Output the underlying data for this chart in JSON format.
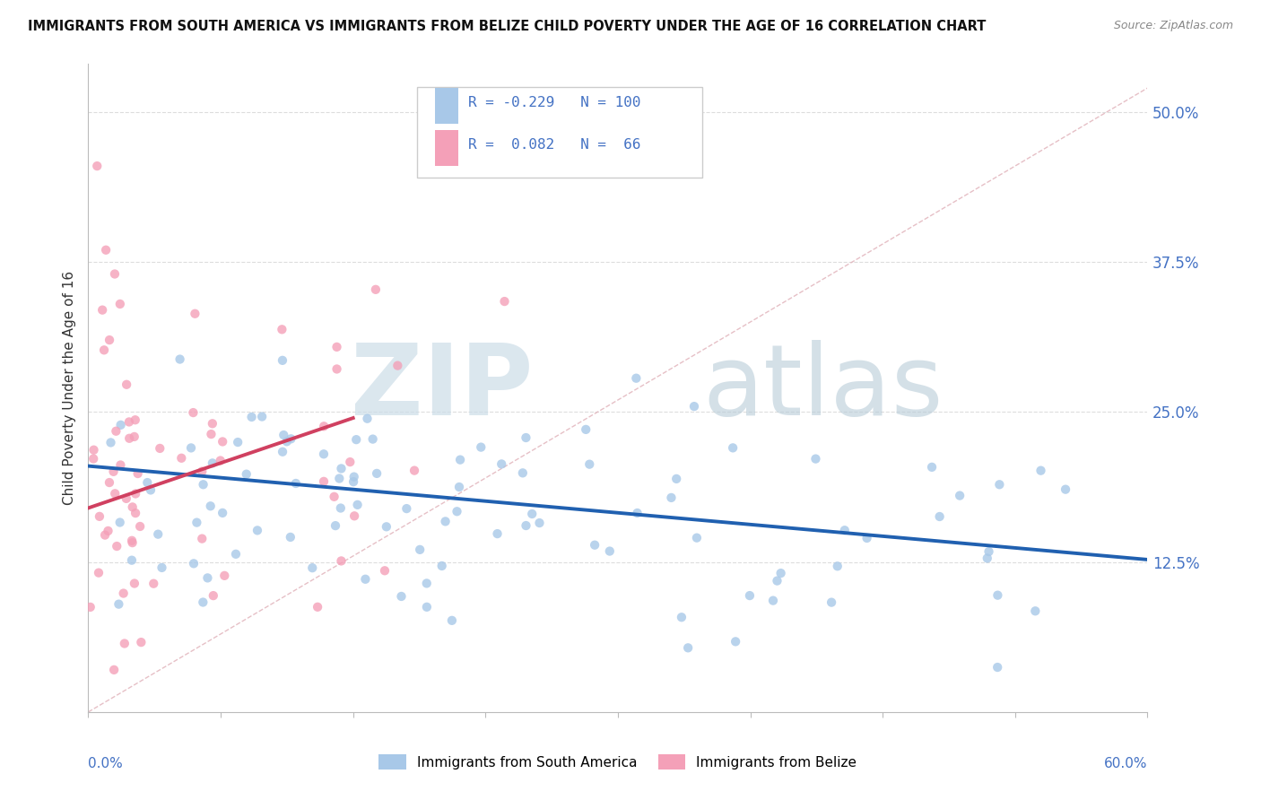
{
  "title": "IMMIGRANTS FROM SOUTH AMERICA VS IMMIGRANTS FROM BELIZE CHILD POVERTY UNDER THE AGE OF 16 CORRELATION CHART",
  "source": "Source: ZipAtlas.com",
  "ylabel": "Child Poverty Under the Age of 16",
  "ytick_labels": [
    "",
    "12.5%",
    "25.0%",
    "37.5%",
    "50.0%"
  ],
  "ytick_vals": [
    0.0,
    0.125,
    0.25,
    0.375,
    0.5
  ],
  "xlim": [
    0.0,
    0.6
  ],
  "ylim": [
    0.0,
    0.54
  ],
  "color_south_america": "#a8c8e8",
  "color_belize": "#f4a0b8",
  "color_trend_sa": "#2060b0",
  "color_trend_belize": "#d04060",
  "color_diag": "#e0a0b0",
  "watermark_zip": "ZIP",
  "watermark_atlas": "atlas",
  "watermark_color_zip": "#c8d8e8",
  "watermark_color_atlas": "#b0c8d8"
}
